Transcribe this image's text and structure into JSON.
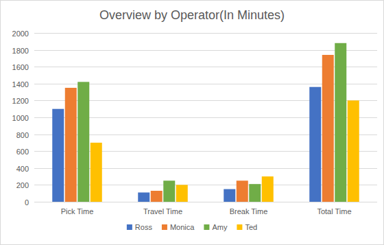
{
  "chart_data": {
    "type": "bar",
    "title": "Overview by Operator(In Minutes)",
    "categories": [
      "Pick Time",
      "Travel Time",
      "Break Time",
      "Total Time"
    ],
    "series": [
      {
        "name": "Ross",
        "color": "#4472c4",
        "values": [
          1100,
          110,
          150,
          1360
        ]
      },
      {
        "name": "Monica",
        "color": "#ed7d31",
        "values": [
          1350,
          130,
          250,
          1740
        ]
      },
      {
        "name": "Amy",
        "color": "#70ad47",
        "values": [
          1420,
          250,
          210,
          1880
        ]
      },
      {
        "name": "Ted",
        "color": "#ffc000",
        "values": [
          700,
          200,
          300,
          1200
        ]
      }
    ],
    "ylim": [
      0,
      2000
    ],
    "yticks": [
      0,
      200,
      400,
      600,
      800,
      1000,
      1200,
      1400,
      1600,
      1800,
      2000
    ],
    "grid": true,
    "legend": "bottom"
  }
}
